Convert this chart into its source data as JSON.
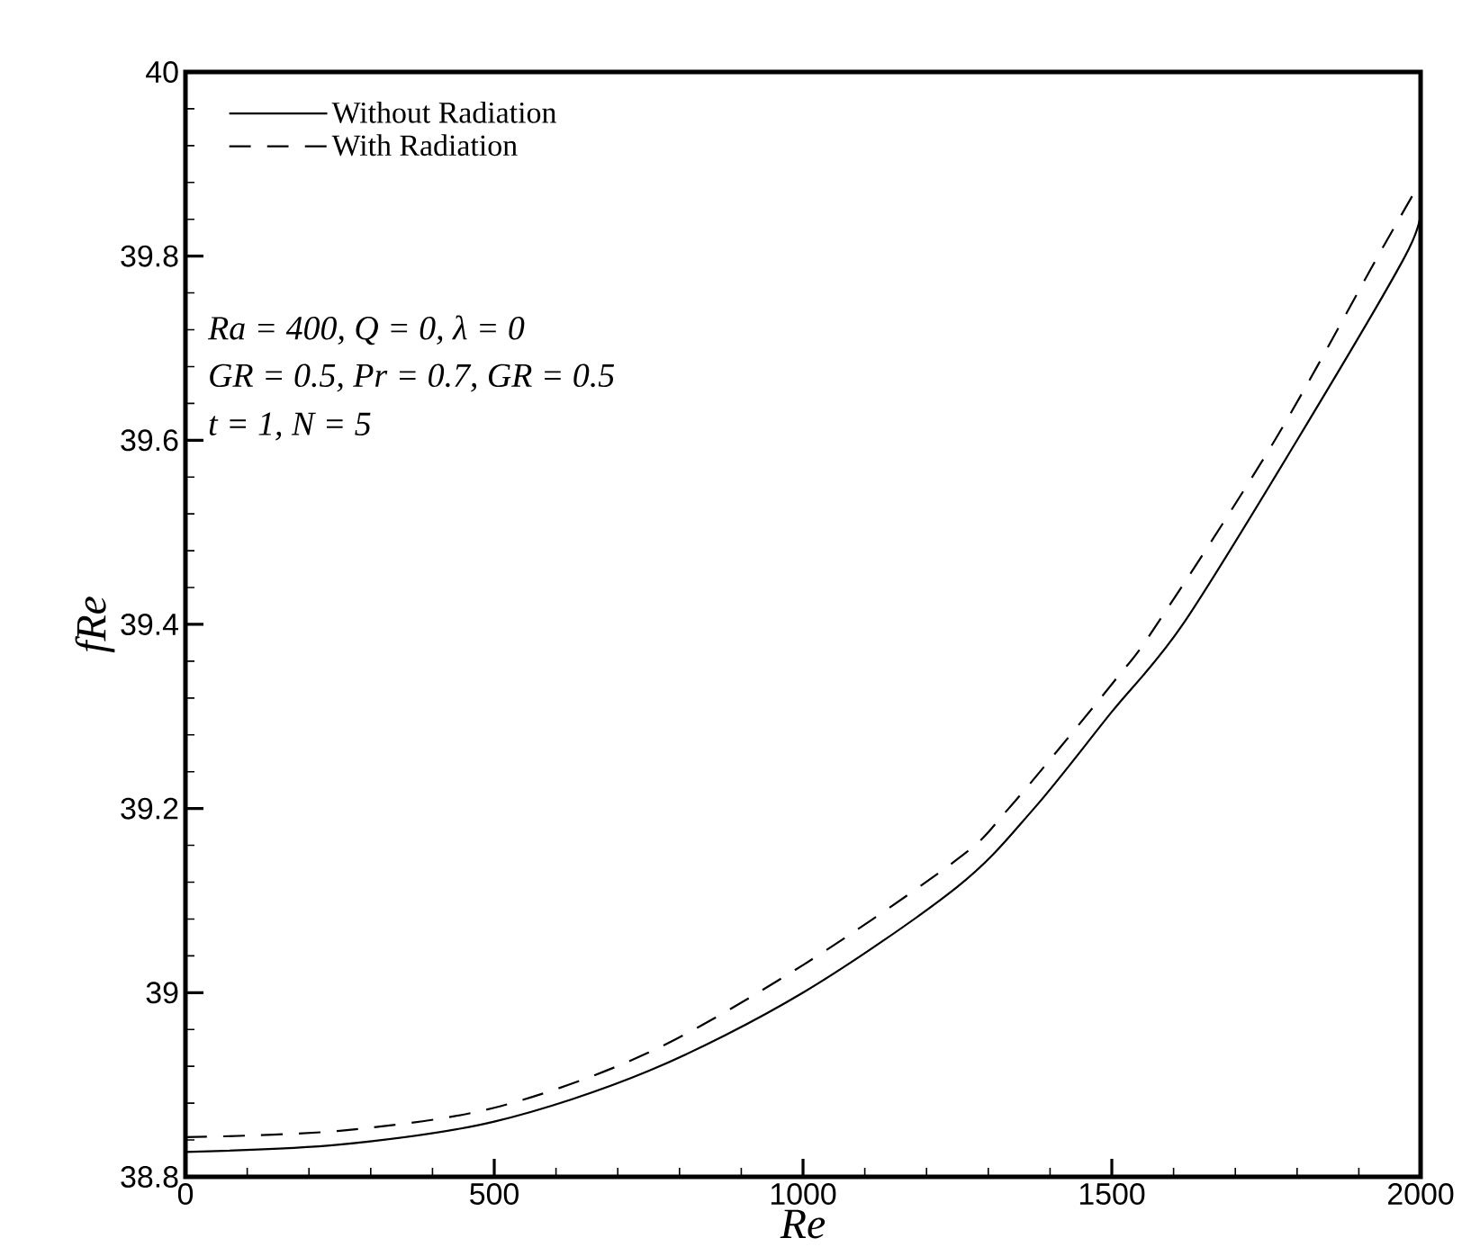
{
  "chart_data": {
    "type": "line",
    "xlabel": "Re",
    "ylabel": "fRe",
    "xlim": [
      0,
      2000
    ],
    "ylim": [
      38.8,
      40
    ],
    "xticks": [
      0,
      500,
      1000,
      1500,
      2000
    ],
    "yticks": [
      38.8,
      39,
      39.2,
      39.4,
      39.6,
      39.8,
      40
    ],
    "legend": "top left",
    "marker": "none",
    "annotations": [
      "Ra = 400, Q = 0,  λ = 0",
      "GR = 0.5, Pr = 0.7, GR = 0.5",
      "t = 1, N = 5"
    ],
    "series": [
      {
        "name": "Without Radiation",
        "color": "#000000",
        "line_style": "solid",
        "x": [
          0,
          250,
          500,
          750,
          1000,
          1250,
          1374,
          1500,
          1615,
          1800,
          1975,
          2000
        ],
        "values": [
          38.827,
          38.835,
          38.86,
          38.915,
          39.0,
          39.115,
          39.2,
          39.305,
          39.4,
          39.6,
          39.8,
          39.852
        ]
      },
      {
        "name": "With Radiation",
        "color": "#000000",
        "line_style": "dashed",
        "x": [
          0,
          250,
          500,
          750,
          1000,
          1250,
          1333,
          1500,
          1573,
          1764,
          1931,
          2000
        ],
        "values": [
          38.843,
          38.85,
          38.875,
          38.935,
          39.03,
          39.145,
          39.2,
          39.335,
          39.4,
          39.6,
          39.8,
          39.881
        ]
      }
    ]
  }
}
